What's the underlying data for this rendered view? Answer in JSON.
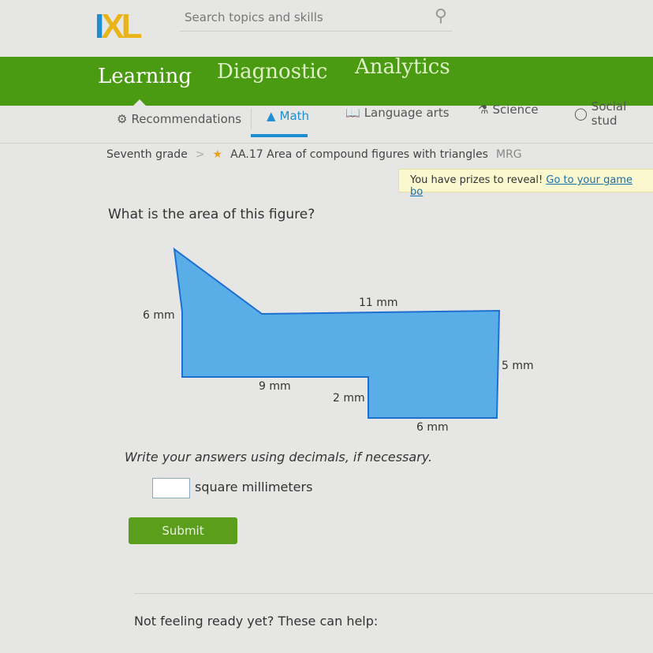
{
  "header": {
    "logo": "IXL",
    "search_placeholder": "Search topics and skills"
  },
  "main_tabs": [
    {
      "label": "Learning",
      "active": true
    },
    {
      "label": "Diagnostic"
    },
    {
      "label": "Analytics"
    }
  ],
  "subjects": [
    {
      "label": "Recommendations",
      "icon": "robot-icon"
    },
    {
      "label": "Math",
      "icon": "pyramid-icon",
      "active": true
    },
    {
      "label": "Language arts",
      "icon": "book-icon"
    },
    {
      "label": "Science",
      "icon": "flask-icon"
    },
    {
      "label": "Social stud",
      "icon": "globe-icon"
    }
  ],
  "breadcrumb": {
    "grade": "Seventh grade",
    "separator": ">",
    "skill": "AA.17 Area of compound figures with triangles",
    "code": "MRG"
  },
  "prize": {
    "text": "You have prizes to reveal!",
    "link": "Go to your game bo"
  },
  "question": {
    "prompt": "What is the area of this figure?",
    "labels": {
      "left": "6 mm",
      "top": "11 mm",
      "right": "5 mm",
      "bottom_left": "9 mm",
      "step": "2 mm",
      "bottom_right": "6 mm"
    },
    "instructions": "Write your answers using decimals, if necessary.",
    "answer_value": "",
    "unit": "square millimeters",
    "submit": "Submit"
  },
  "colors": {
    "green": "#4a9a12",
    "blue": "#1d8fd0",
    "figure_fill": "#5aaee8"
  },
  "help": {
    "text": "Not feeling ready yet? These can help:"
  }
}
